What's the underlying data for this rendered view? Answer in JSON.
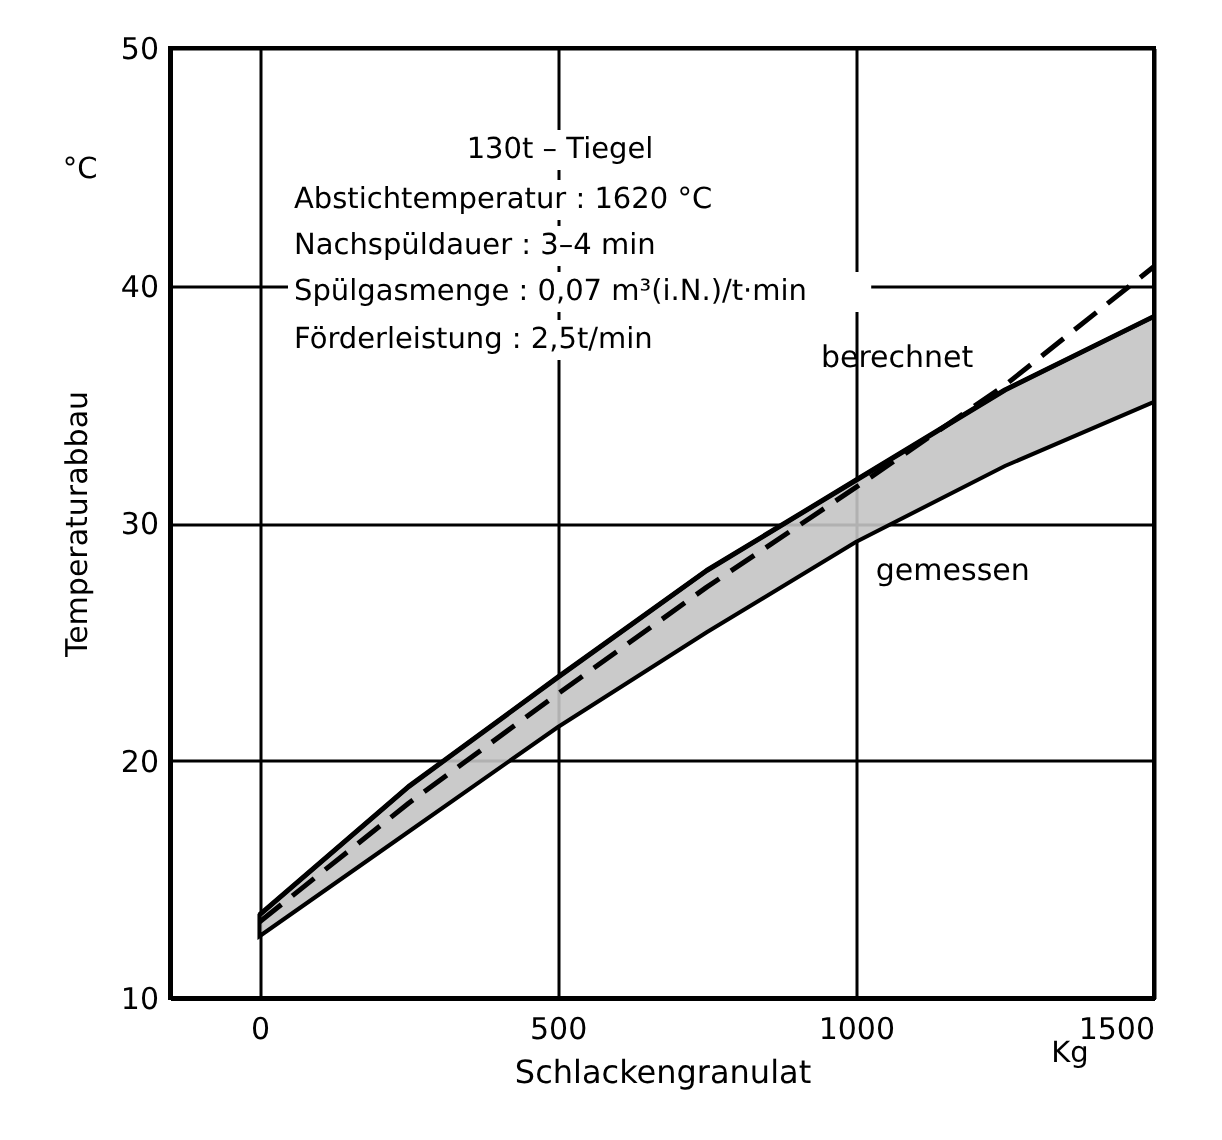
{
  "chart_data": {
    "type": "line",
    "xlabel": "Schlackengranulat",
    "ylabel": "Temperaturabbau",
    "x": [
      0,
      250,
      500,
      750,
      1000,
      1250,
      1500
    ],
    "series": [
      {
        "name": "gemessen",
        "color": "#000000",
        "values": [
          13.5,
          18.9,
          23.5,
          28.0,
          31.8,
          35.6,
          38.7
        ],
        "lower": [
          12.6,
          17.0,
          21.4,
          25.4,
          29.2,
          32.4,
          35.1
        ],
        "upper": [
          13.5,
          18.9,
          23.5,
          28.0,
          31.8,
          35.6,
          38.7
        ]
      },
      {
        "name": "berechnet",
        "color": "#000000",
        "line_style": "dashed",
        "values": [
          13.2,
          18.2,
          22.8,
          27.3,
          31.5,
          35.8,
          40.8
        ]
      }
    ],
    "xlim": [
      -150,
      1500
    ],
    "xticks": [
      0,
      500,
      1000,
      1500
    ],
    "ylim": [
      10,
      50
    ],
    "yticks": [
      10,
      20,
      30,
      40,
      50
    ],
    "grid": true,
    "annotations": [
      "130t – Tiegel",
      "Abstichtemperatur : 1620 °C",
      "Nachspüldauer : 3–4 min",
      "Spülgasmenge : 0,07 m³(i.N.)/t·min",
      "Förderleistung : 2,5t/min",
      "°C",
      "Kg"
    ]
  }
}
